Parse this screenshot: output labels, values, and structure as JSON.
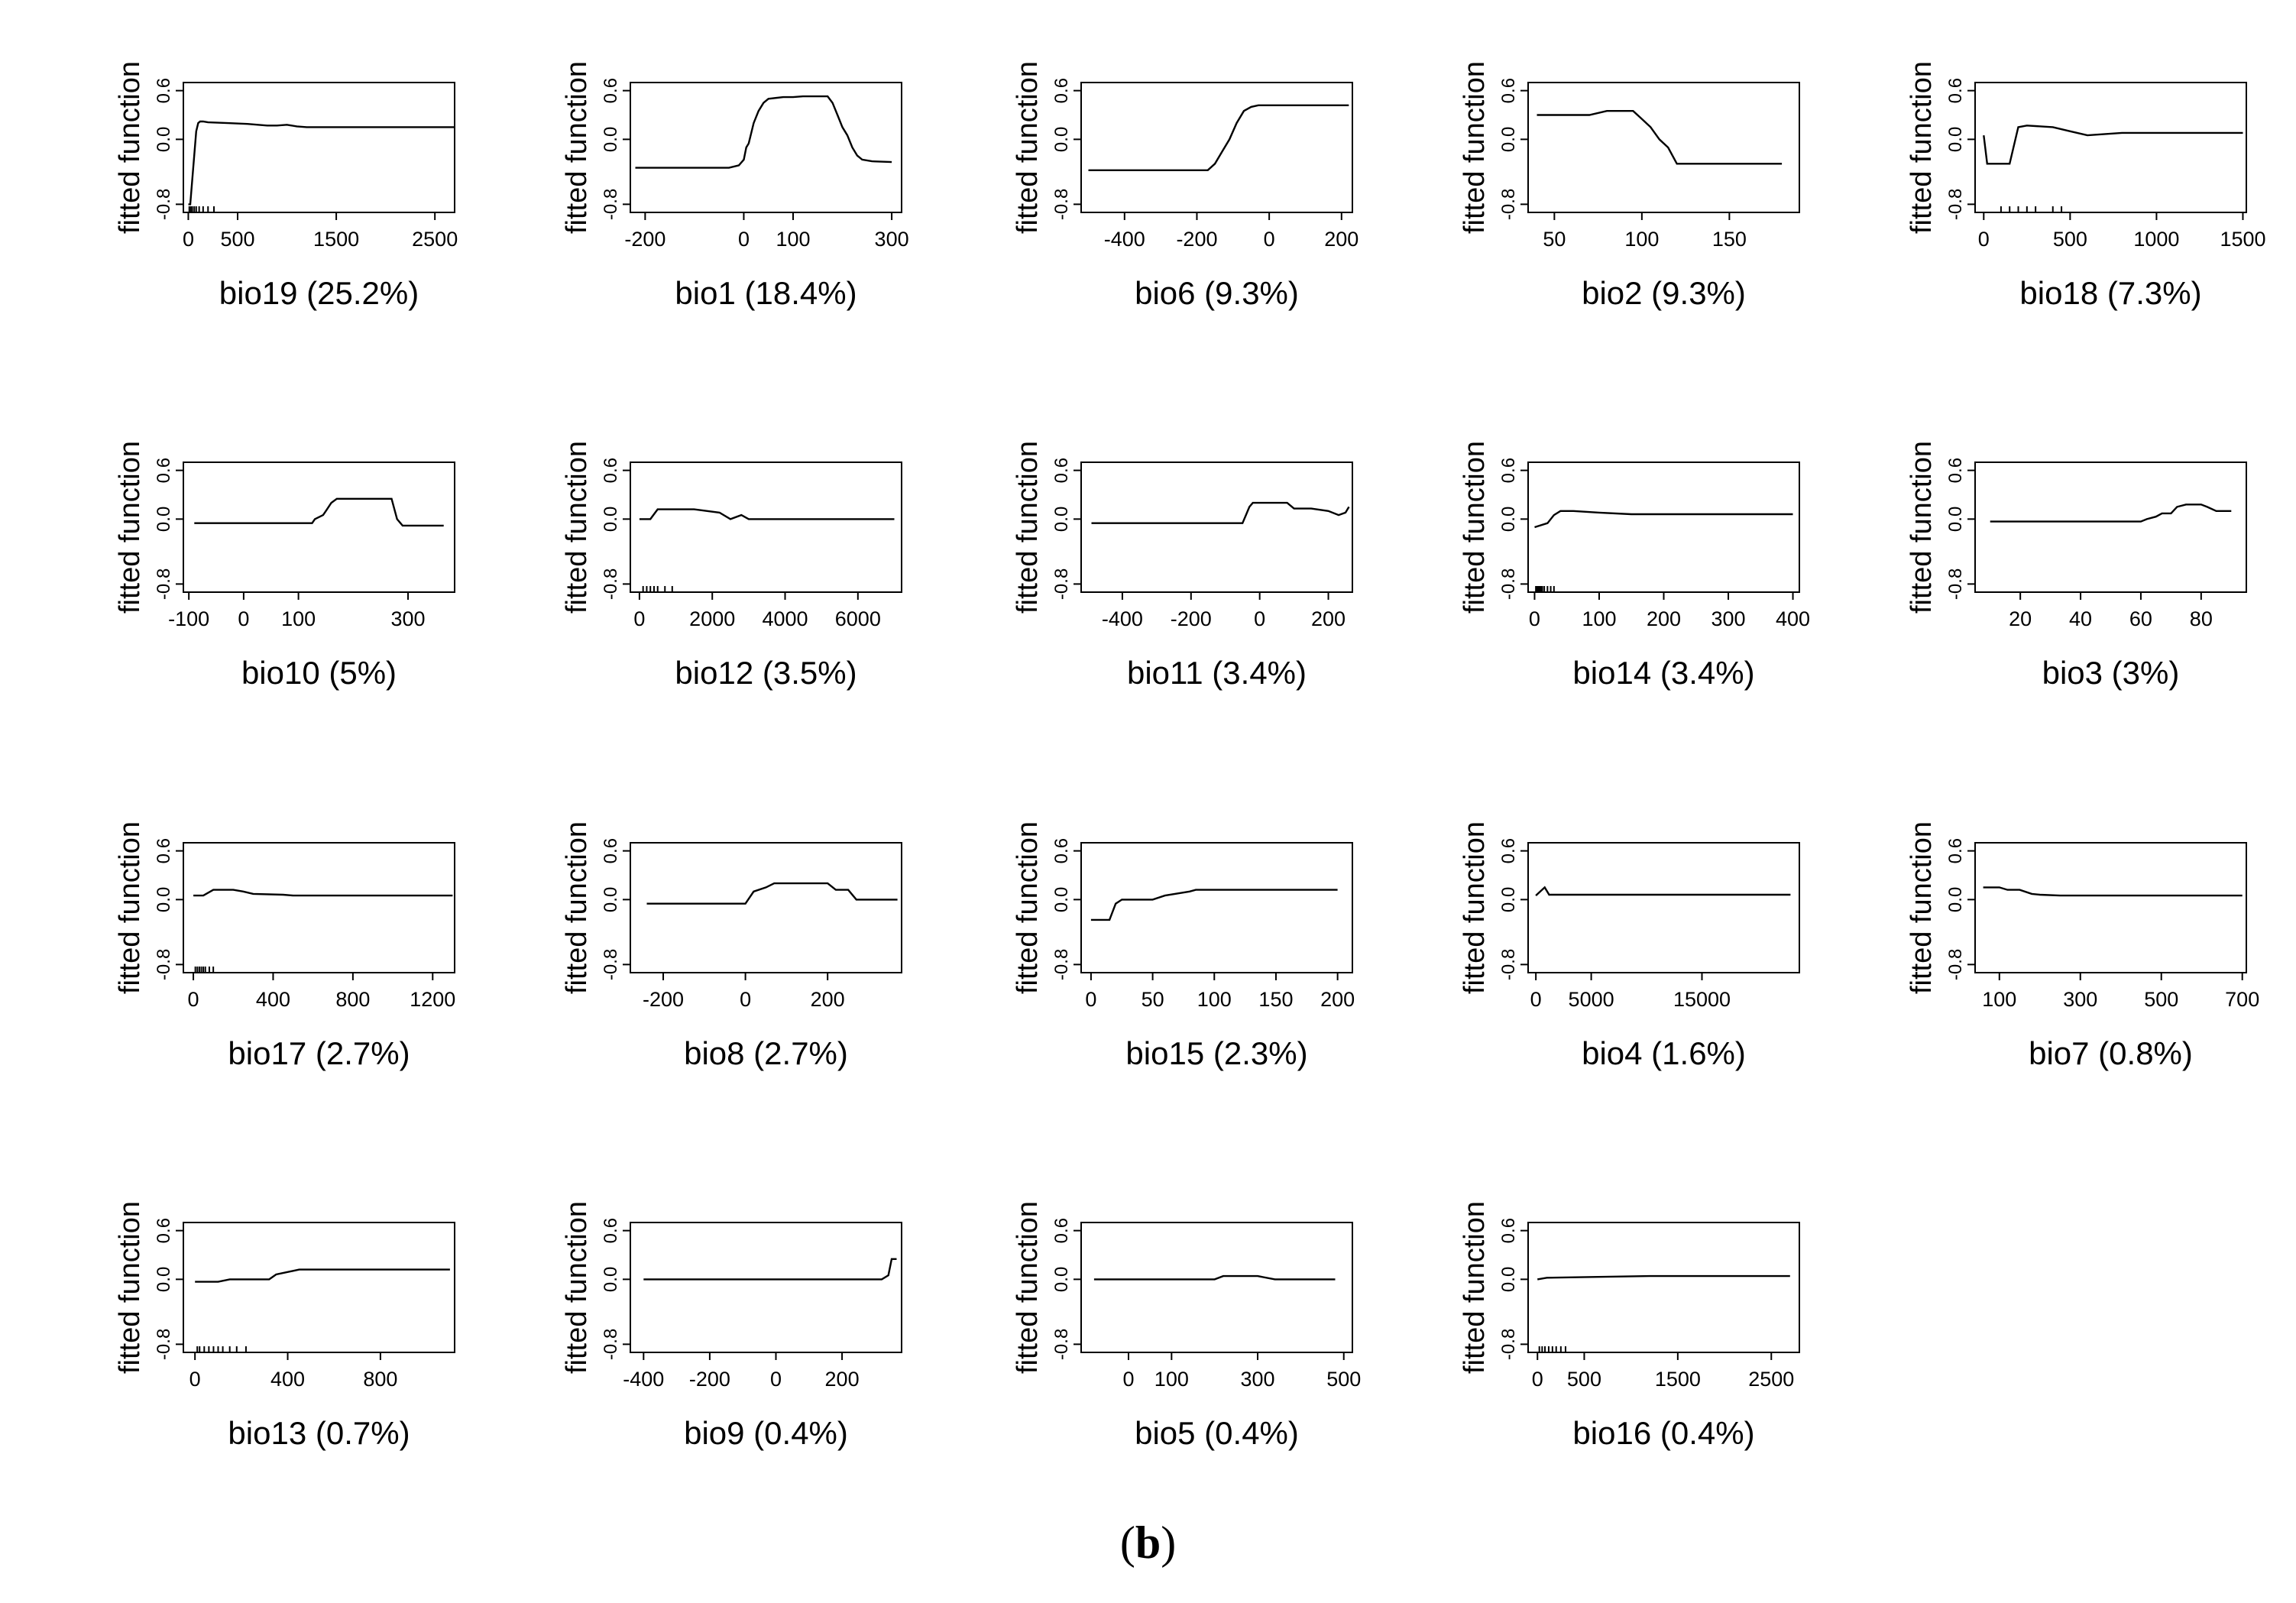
{
  "figure_label": "b",
  "chart_data": [
    {
      "type": "line",
      "variable": "bio19",
      "contribution": "(25.2%)",
      "xlabel": "bio19  (25.2%)",
      "ylabel": "fitted function",
      "xlim": [
        -50,
        2700
      ],
      "ylim": [
        -0.9,
        0.7
      ],
      "xticks": [
        0,
        500,
        1500,
        2500
      ],
      "yticks": [
        -0.8,
        0.0,
        0.6
      ],
      "rug": [
        10,
        25,
        40,
        60,
        80,
        110,
        150,
        200,
        260
      ],
      "x": [
        0,
        20,
        40,
        60,
        80,
        100,
        120,
        150,
        200,
        400,
        600,
        800,
        900,
        1000,
        1100,
        1200,
        1500,
        2000,
        2700
      ],
      "y": [
        -0.8,
        -0.8,
        -0.5,
        -0.2,
        0.1,
        0.2,
        0.22,
        0.22,
        0.21,
        0.2,
        0.19,
        0.17,
        0.17,
        0.18,
        0.16,
        0.15,
        0.15,
        0.15,
        0.15
      ]
    },
    {
      "type": "line",
      "variable": "bio1",
      "contribution": "(18.4%)",
      "xlabel": "bio1  (18.4%)",
      "ylabel": "fitted function",
      "xlim": [
        -230,
        320
      ],
      "ylim": [
        -0.9,
        0.7
      ],
      "xticks": [
        -200,
        0,
        100,
        300
      ],
      "yticks": [
        -0.8,
        0.0,
        0.6
      ],
      "rug": [],
      "x": [
        -220,
        -30,
        -10,
        0,
        5,
        10,
        20,
        30,
        40,
        50,
        80,
        100,
        120,
        170,
        180,
        190,
        200,
        210,
        220,
        230,
        240,
        260,
        300
      ],
      "y": [
        -0.35,
        -0.35,
        -0.32,
        -0.25,
        -0.1,
        -0.05,
        0.2,
        0.35,
        0.45,
        0.5,
        0.52,
        0.52,
        0.53,
        0.53,
        0.45,
        0.3,
        0.15,
        0.05,
        -0.1,
        -0.2,
        -0.25,
        -0.27,
        -0.28
      ]
    },
    {
      "type": "line",
      "variable": "bio6",
      "contribution": "(9.3%)",
      "xlabel": "bio6  (9.3%)",
      "ylabel": "fitted function",
      "xlim": [
        -520,
        230
      ],
      "ylim": [
        -0.9,
        0.7
      ],
      "xticks": [
        -400,
        -200,
        0,
        200
      ],
      "yticks": [
        -0.8,
        0.0,
        0.6
      ],
      "rug": [],
      "x": [
        -500,
        -170,
        -150,
        -130,
        -110,
        -90,
        -70,
        -50,
        -30,
        220
      ],
      "y": [
        -0.38,
        -0.38,
        -0.3,
        -0.15,
        0.0,
        0.2,
        0.35,
        0.4,
        0.42,
        0.42
      ]
    },
    {
      "type": "line",
      "variable": "bio2",
      "contribution": "(9.3%)",
      "xlabel": "bio2  (9.3%)",
      "ylabel": "fitted function",
      "xlim": [
        35,
        190
      ],
      "ylim": [
        -0.9,
        0.7
      ],
      "xticks": [
        50,
        100,
        150
      ],
      "yticks": [
        -0.8,
        0.0,
        0.6
      ],
      "rug": [],
      "x": [
        40,
        70,
        80,
        95,
        100,
        105,
        110,
        115,
        120,
        180
      ],
      "y": [
        0.3,
        0.3,
        0.35,
        0.35,
        0.25,
        0.15,
        0.0,
        -0.1,
        -0.3,
        -0.3
      ]
    },
    {
      "type": "line",
      "variable": "bio18",
      "contribution": "(7.3%)",
      "xlabel": "bio18  (7.3%)",
      "ylabel": "fitted function",
      "xlim": [
        -50,
        1520
      ],
      "ylim": [
        -0.9,
        0.7
      ],
      "xticks": [
        0,
        500,
        1000,
        1500
      ],
      "yticks": [
        -0.8,
        0.0,
        0.6
      ],
      "rug": [
        100,
        150,
        200,
        250,
        300,
        400,
        450
      ],
      "x": [
        0,
        20,
        50,
        150,
        200,
        250,
        400,
        500,
        600,
        800,
        1500
      ],
      "y": [
        0.05,
        -0.3,
        -0.3,
        -0.3,
        0.15,
        0.17,
        0.15,
        0.1,
        0.05,
        0.08,
        0.08
      ]
    },
    {
      "type": "line",
      "variable": "bio10",
      "contribution": "(5%)",
      "xlabel": "bio10  (5%)",
      "ylabel": "fitted function",
      "xlim": [
        -110,
        385
      ],
      "ylim": [
        -0.9,
        0.7
      ],
      "xticks": [
        -100,
        0,
        100,
        300
      ],
      "yticks": [
        -0.8,
        0.0,
        0.6
      ],
      "rug": [],
      "x": [
        -90,
        125,
        130,
        145,
        150,
        160,
        170,
        270,
        280,
        290,
        300,
        365
      ],
      "y": [
        -0.05,
        -0.05,
        0.0,
        0.05,
        0.1,
        0.2,
        0.25,
        0.25,
        0.0,
        -0.08,
        -0.08,
        -0.08
      ]
    },
    {
      "type": "line",
      "variable": "bio12",
      "contribution": "(3.5%)",
      "xlabel": "bio12  (3.5%)",
      "ylabel": "fitted function",
      "xlim": [
        -250,
        7200
      ],
      "ylim": [
        -0.9,
        0.7
      ],
      "xticks": [
        0,
        2000,
        4000,
        6000
      ],
      "yticks": [
        -0.8,
        0.0,
        0.6
      ],
      "rug": [
        100,
        200,
        300,
        400,
        500,
        700,
        900
      ],
      "x": [
        0,
        300,
        500,
        1500,
        2200,
        2500,
        2800,
        3000,
        3500,
        7000
      ],
      "y": [
        0.0,
        0.0,
        0.12,
        0.12,
        0.08,
        0.0,
        0.05,
        0.0,
        0.0,
        0.0
      ]
    },
    {
      "type": "line",
      "variable": "bio11",
      "contribution": "(3.4%)",
      "xlabel": "bio11  (3.4%)",
      "ylabel": "fitted function",
      "xlim": [
        -520,
        270
      ],
      "ylim": [
        -0.9,
        0.7
      ],
      "xticks": [
        -400,
        -200,
        0,
        200
      ],
      "yticks": [
        -0.8,
        0.0,
        0.6
      ],
      "rug": [],
      "x": [
        -490,
        -50,
        -40,
        -30,
        -20,
        80,
        100,
        150,
        200,
        230,
        250,
        260
      ],
      "y": [
        -0.05,
        -0.05,
        0.05,
        0.15,
        0.2,
        0.2,
        0.13,
        0.13,
        0.1,
        0.05,
        0.08,
        0.15
      ]
    },
    {
      "type": "line",
      "variable": "bio14",
      "contribution": "(3.4%)",
      "xlabel": "bio14  (3.4%)",
      "ylabel": "fitted function",
      "xlim": [
        -10,
        410
      ],
      "ylim": [
        -0.9,
        0.7
      ],
      "xticks": [
        0,
        100,
        200,
        300,
        400
      ],
      "yticks": [
        -0.8,
        0.0,
        0.6
      ],
      "rug": [
        2,
        4,
        6,
        8,
        10,
        12,
        15,
        20,
        25,
        30
      ],
      "x": [
        0,
        20,
        30,
        40,
        60,
        100,
        150,
        400
      ],
      "y": [
        -0.1,
        -0.05,
        0.05,
        0.1,
        0.1,
        0.08,
        0.06,
        0.06
      ]
    },
    {
      "type": "line",
      "variable": "bio3",
      "contribution": "(3%)",
      "xlabel": "bio3  (3%)",
      "ylabel": "fitted function",
      "xlim": [
        5,
        95
      ],
      "ylim": [
        -0.9,
        0.7
      ],
      "xticks": [
        20,
        40,
        60,
        80
      ],
      "yticks": [
        -0.8,
        0.0,
        0.6
      ],
      "rug": [],
      "x": [
        10,
        60,
        62,
        65,
        67,
        70,
        72,
        75,
        80,
        82,
        85,
        90
      ],
      "y": [
        -0.03,
        -0.03,
        0.0,
        0.03,
        0.07,
        0.07,
        0.15,
        0.18,
        0.18,
        0.15,
        0.1,
        0.1
      ]
    },
    {
      "type": "line",
      "variable": "bio17",
      "contribution": "(2.7%)",
      "xlabel": "bio17  (2.7%)",
      "ylabel": "fitted function",
      "xlim": [
        -50,
        1310
      ],
      "ylim": [
        -0.9,
        0.7
      ],
      "xticks": [
        0,
        400,
        800,
        1200
      ],
      "yticks": [
        -0.8,
        0.0,
        0.6
      ],
      "rug": [
        10,
        20,
        30,
        40,
        50,
        60,
        80,
        100
      ],
      "x": [
        0,
        50,
        100,
        200,
        250,
        300,
        450,
        500,
        1300
      ],
      "y": [
        0.05,
        0.05,
        0.12,
        0.12,
        0.1,
        0.07,
        0.06,
        0.05,
        0.05
      ]
    },
    {
      "type": "line",
      "variable": "bio8",
      "contribution": "(2.7%)",
      "xlabel": "bio8  (2.7%)",
      "ylabel": "fitted function",
      "xlim": [
        -280,
        380
      ],
      "ylim": [
        -0.9,
        0.7
      ],
      "xticks": [
        -200,
        0,
        200
      ],
      "yticks": [
        -0.8,
        0.0,
        0.6
      ],
      "rug": [],
      "x": [
        -240,
        0,
        20,
        50,
        70,
        200,
        220,
        250,
        270,
        370
      ],
      "y": [
        -0.05,
        -0.05,
        0.1,
        0.15,
        0.2,
        0.2,
        0.12,
        0.12,
        0.0,
        0.0
      ]
    },
    {
      "type": "line",
      "variable": "bio15",
      "contribution": "(2.3%)",
      "xlabel": "bio15  (2.3%)",
      "ylabel": "fitted function",
      "xlim": [
        -8,
        212
      ],
      "ylim": [
        -0.9,
        0.7
      ],
      "xticks": [
        0,
        50,
        100,
        150,
        200
      ],
      "yticks": [
        -0.8,
        0.0,
        0.6
      ],
      "rug": [],
      "x": [
        0,
        15,
        20,
        25,
        50,
        60,
        80,
        85,
        100,
        200
      ],
      "y": [
        -0.25,
        -0.25,
        -0.05,
        0.0,
        0.0,
        0.05,
        0.1,
        0.12,
        0.12,
        0.12
      ]
    },
    {
      "type": "line",
      "variable": "bio4",
      "contribution": "(1.6%)",
      "xlabel": "bio4  (1.6%)",
      "ylabel": "fitted function",
      "xlim": [
        -700,
        23800
      ],
      "ylim": [
        -0.9,
        0.7
      ],
      "xticks": [
        0,
        5000,
        15000
      ],
      "yticks": [
        -0.8,
        0.0,
        0.6
      ],
      "rug": [],
      "x": [
        0,
        800,
        1200,
        2000,
        5000,
        15000,
        23000
      ],
      "y": [
        0.05,
        0.15,
        0.06,
        0.06,
        0.06,
        0.06,
        0.06
      ]
    },
    {
      "type": "line",
      "variable": "bio7",
      "contribution": "(0.8%)",
      "xlabel": "bio7  (0.8%)",
      "ylabel": "fitted function",
      "xlim": [
        40,
        710
      ],
      "ylim": [
        -0.9,
        0.7
      ],
      "xticks": [
        100,
        300,
        500,
        700
      ],
      "yticks": [
        -0.8,
        0.0,
        0.6
      ],
      "rug": [],
      "x": [
        60,
        100,
        120,
        150,
        180,
        200,
        250,
        300,
        700
      ],
      "y": [
        0.15,
        0.15,
        0.12,
        0.12,
        0.07,
        0.06,
        0.05,
        0.05,
        0.05
      ]
    },
    {
      "type": "line",
      "variable": "bio13",
      "contribution": "(0.7%)",
      "xlabel": "bio13  (0.7%)",
      "ylabel": "fitted function",
      "xlim": [
        -50,
        1120
      ],
      "ylim": [
        -0.9,
        0.7
      ],
      "xticks": [
        0,
        400,
        800
      ],
      "yticks": [
        -0.8,
        0.0,
        0.6
      ],
      "rug": [
        10,
        20,
        40,
        60,
        80,
        100,
        120,
        150,
        180,
        220
      ],
      "x": [
        0,
        100,
        150,
        320,
        350,
        450,
        1100
      ],
      "y": [
        -0.03,
        -0.03,
        0.0,
        0.0,
        0.06,
        0.12,
        0.12
      ]
    },
    {
      "type": "line",
      "variable": "bio9",
      "contribution": "(0.4%)",
      "xlabel": "bio9  (0.4%)",
      "ylabel": "fitted function",
      "xlim": [
        -440,
        380
      ],
      "ylim": [
        -0.9,
        0.7
      ],
      "xticks": [
        -400,
        -200,
        0,
        200
      ],
      "yticks": [
        -0.8,
        0.0,
        0.6
      ],
      "rug": [],
      "x": [
        -400,
        320,
        340,
        350,
        365
      ],
      "y": [
        0.0,
        0.0,
        0.05,
        0.25,
        0.25
      ]
    },
    {
      "type": "line",
      "variable": "bio5",
      "contribution": "(0.4%)",
      "xlabel": "bio5  (0.4%)",
      "ylabel": "fitted function",
      "xlim": [
        -110,
        520
      ],
      "ylim": [
        -0.9,
        0.7
      ],
      "xticks": [
        0,
        100,
        300,
        500
      ],
      "yticks": [
        -0.8,
        0.0,
        0.6
      ],
      "rug": [],
      "x": [
        -80,
        200,
        220,
        300,
        340,
        480
      ],
      "y": [
        0.0,
        0.0,
        0.04,
        0.04,
        0.0,
        0.0
      ]
    },
    {
      "type": "line",
      "variable": "bio16",
      "contribution": "(0.4%)",
      "xlabel": "bio16  (0.4%)",
      "ylabel": "fitted function",
      "xlim": [
        -100,
        2800
      ],
      "ylim": [
        -0.9,
        0.7
      ],
      "xticks": [
        0,
        500,
        1500,
        2500
      ],
      "yticks": [
        -0.8,
        0.0,
        0.6
      ],
      "rug": [
        20,
        50,
        80,
        120,
        160,
        200,
        250,
        300
      ],
      "x": [
        0,
        100,
        1200,
        2700
      ],
      "y": [
        0.0,
        0.02,
        0.04,
        0.04
      ]
    }
  ]
}
